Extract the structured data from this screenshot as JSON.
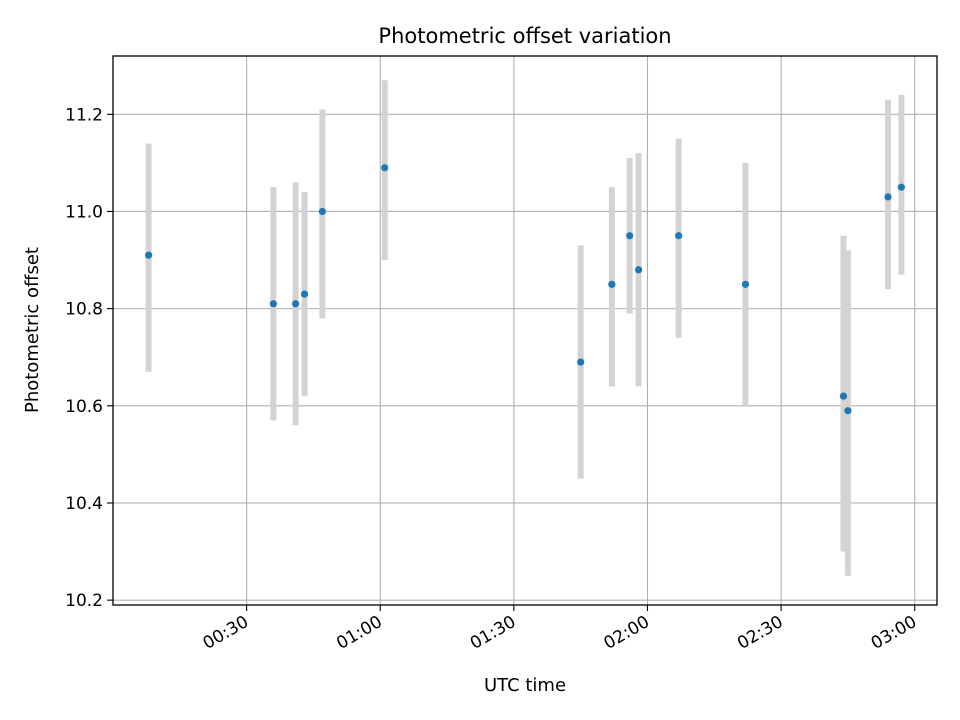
{
  "chart_data": {
    "type": "scatter",
    "title": "Photometric offset variation",
    "xlabel": "UTC time",
    "ylabel": "Photometric offset",
    "x_tick_labels": [
      "00:30",
      "01:00",
      "01:30",
      "02:00",
      "02:30",
      "03:00"
    ],
    "x_tick_minutes": [
      30,
      60,
      90,
      120,
      150,
      180
    ],
    "y_ticks": [
      10.2,
      10.4,
      10.6,
      10.8,
      11.0,
      11.2
    ],
    "y_tick_labels": [
      "10.2",
      "10.4",
      "10.6",
      "10.8",
      "11.0",
      "11.2"
    ],
    "xlim": [
      "00:00",
      "03:05"
    ],
    "ylim": [
      10.19,
      11.32
    ],
    "grid": true,
    "point_color": "#1f77b4",
    "errorbar_color": "#d3d3d3",
    "series": [
      {
        "x": [
          "00:08",
          "00:36",
          "00:41",
          "00:43",
          "00:47",
          "01:01",
          "01:45",
          "01:52",
          "01:56",
          "01:58",
          "02:07",
          "02:22",
          "02:44",
          "02:45",
          "02:54",
          "02:57"
        ],
        "y": [
          10.91,
          10.81,
          10.81,
          10.83,
          11.0,
          11.09,
          10.69,
          10.85,
          10.95,
          10.88,
          10.95,
          10.85,
          10.62,
          10.59,
          11.03,
          11.05
        ],
        "yerr_low": [
          10.67,
          10.57,
          10.56,
          10.62,
          10.78,
          10.9,
          10.45,
          10.64,
          10.79,
          10.64,
          10.74,
          10.6,
          10.3,
          10.25,
          10.84,
          10.87
        ],
        "yerr_high": [
          11.14,
          11.05,
          11.06,
          11.04,
          11.21,
          11.27,
          10.93,
          11.05,
          11.11,
          11.12,
          11.15,
          11.1,
          10.95,
          10.92,
          11.23,
          11.24
        ]
      }
    ]
  }
}
